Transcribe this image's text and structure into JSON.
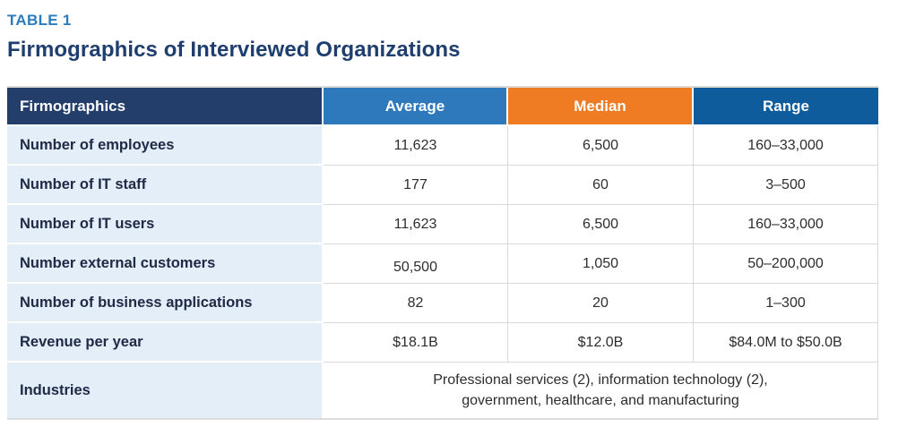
{
  "header": {
    "eyebrow": "TABLE 1",
    "title": "Firmographics of Interviewed Organizations"
  },
  "table": {
    "columns": [
      "Firmographics",
      "Average",
      "Median",
      "Range"
    ],
    "rows": [
      {
        "label": "Number of employees",
        "average": "11,623",
        "median": "6,500",
        "range": "160–33,000"
      },
      {
        "label": "Number of IT staff",
        "average": "177",
        "median": "60",
        "range": "3–500"
      },
      {
        "label": "Number of IT users",
        "average": "11,623",
        "median": "6,500",
        "range": "160–33,000"
      },
      {
        "label": "Number external customers",
        "average": "50,500",
        "median": "1,050",
        "range": "50–200,000"
      },
      {
        "label": "Number of business applications",
        "average": "82",
        "median": "20",
        "range": "1–300"
      },
      {
        "label": "Revenue per year",
        "average": "$18.1B",
        "median": "$12.0B",
        "range": "$84.0M to $50.0B"
      }
    ],
    "industries": {
      "label": "Industries",
      "lines": [
        "Professional services (2), information technology (2),",
        "government, healthcare, and manufacturing"
      ]
    }
  },
  "chart_data": {
    "type": "table",
    "title": "Firmographics of Interviewed Organizations",
    "columns": [
      "Firmographics",
      "Average",
      "Median",
      "Range"
    ],
    "rows": [
      [
        "Number of employees",
        "11,623",
        "6,500",
        "160–33,000"
      ],
      [
        "Number of IT staff",
        "177",
        "60",
        "3–500"
      ],
      [
        "Number of IT users",
        "11,623",
        "6,500",
        "160–33,000"
      ],
      [
        "Number external customers",
        "50,500",
        "1,050",
        "50–200,000"
      ],
      [
        "Number of business applications",
        "82",
        "20",
        "1–300"
      ],
      [
        "Revenue per year",
        "$18.1B",
        "$12.0B",
        "$84.0M to $50.0B"
      ],
      [
        "Industries",
        "Professional services (2), information technology (2), government, healthcare, and manufacturing"
      ]
    ]
  },
  "colors": {
    "eyebrow_text": "#2B7CBE",
    "title_text": "#1E3E6F",
    "header_firmographics_bg": "#243E6B",
    "header_average_bg": "#2E79BC",
    "header_median_bg": "#EF7B23",
    "header_range_bg": "#0F5C9C",
    "label_column_bg": "#E4EEF8",
    "label_text": "#202945",
    "value_text": "#2D2D2D",
    "grid_line": "#D9D9D9"
  }
}
